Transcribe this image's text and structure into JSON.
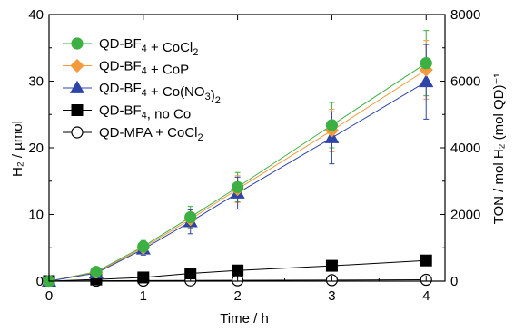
{
  "chart_data": {
    "type": "scatter",
    "title": "",
    "xlabel": "Time / h",
    "ylabel": "H₂ / µmol",
    "y2label": "TON / mol H₂ (mol QD)⁻¹",
    "xlim": [
      0,
      4.2
    ],
    "ylim": [
      0,
      40
    ],
    "y2lim": [
      0,
      8000
    ],
    "xticks": [
      "0",
      "1",
      "2",
      "3",
      "4"
    ],
    "yticks": [
      "0",
      "10",
      "20",
      "30",
      "40"
    ],
    "y2ticks": [
      "0",
      "2000",
      "4000",
      "6000",
      "8000"
    ],
    "grid": false,
    "legend_position": "top-left",
    "x": [
      0,
      0.5,
      1,
      1.5,
      2,
      3,
      4
    ],
    "series": [
      {
        "name": "QD-BF4 + CoCl2",
        "legend_main": "QD-BF",
        "legend_sub": "4",
        "legend_rest": " + CoCl",
        "legend_sub2": "2",
        "marker": "circle",
        "color": "#3cb043",
        "edge": "#3cb043",
        "filled": true,
        "values": [
          0,
          1.4,
          5.2,
          9.6,
          14.1,
          23.4,
          32.7
        ],
        "errors": [
          0,
          0.4,
          0.9,
          1.6,
          2.2,
          3.4,
          4.9
        ]
      },
      {
        "name": "QD-BF4 + CoP",
        "legend_main": "QD-BF",
        "legend_sub": "4",
        "legend_rest": " + CoP",
        "legend_sub2": "",
        "marker": "diamond",
        "color": "#f39a3d",
        "edge": "#f39a3d",
        "filled": true,
        "values": [
          0,
          1.3,
          5.0,
          9.3,
          13.8,
          22.6,
          31.7
        ],
        "errors": [
          0,
          0.4,
          0.8,
          1.4,
          2.0,
          3.2,
          4.4
        ]
      },
      {
        "name": "QD-BF4 + Co(NO3)2",
        "legend_main": "QD-BF",
        "legend_sub": "4",
        "legend_rest": " + Co(NO",
        "legend_sub2": "3",
        "legend_rest2": ")",
        "legend_sub3": "2",
        "marker": "triangle",
        "color": "#2e45a8",
        "edge": "#2e45a8",
        "filled": true,
        "values": [
          0,
          1.2,
          4.8,
          8.9,
          13.2,
          21.5,
          29.9
        ],
        "errors": [
          0,
          0.5,
          0.9,
          1.8,
          2.4,
          3.9,
          5.6
        ]
      },
      {
        "name": "QD-BF4, no Co",
        "legend_main": "QD-BF",
        "legend_sub": "4",
        "legend_rest": ", no Co",
        "legend_sub2": "",
        "marker": "square",
        "color": "#000000",
        "edge": "#000000",
        "filled": true,
        "values": [
          0,
          0.25,
          0.55,
          1.15,
          1.6,
          2.3,
          3.1
        ],
        "errors": [
          0,
          0,
          0,
          0,
          0,
          0,
          0
        ]
      },
      {
        "name": "QD-MPA + CoCl2",
        "legend_main": "QD-MPA + CoCl",
        "legend_sub": "2",
        "legend_rest": "",
        "legend_sub2": "",
        "marker": "circle",
        "color": "#ffffff",
        "edge": "#000000",
        "filled": false,
        "values": [
          0,
          0.05,
          0.08,
          0.1,
          0.12,
          0.15,
          0.2
        ],
        "errors": [
          0,
          0,
          0,
          0,
          0,
          0,
          0
        ]
      }
    ]
  }
}
